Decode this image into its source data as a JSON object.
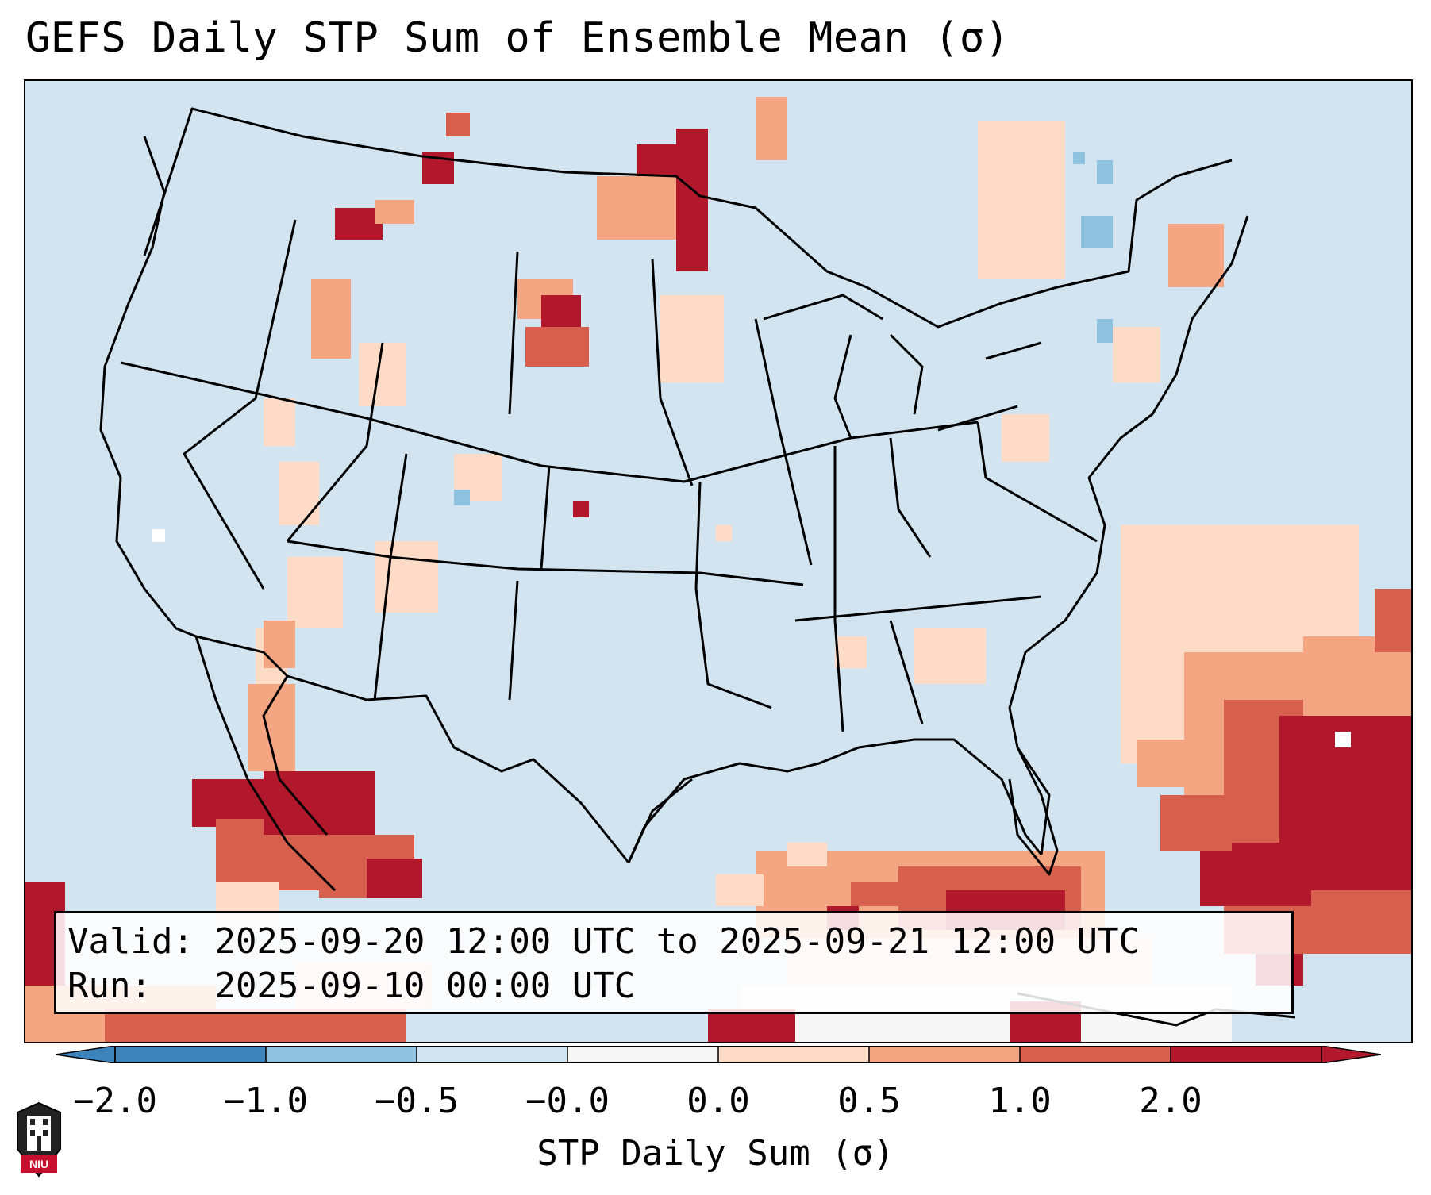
{
  "figure": {
    "title": "GEFS Daily STP Sum of Ensemble Mean (σ)",
    "info": {
      "valid_label": "Valid:",
      "valid_value": "2025-09-20 12:00 UTC to 2025-09-21 12:00 UTC",
      "run_label": "Run:",
      "run_value": "2025-09-10 00:00 UTC"
    },
    "colorbar": {
      "label": "STP Daily Sum (σ)",
      "ticks": [
        "−2.0",
        "−1.0",
        "−0.5",
        "−0.0",
        "0.0",
        "0.5",
        "1.0",
        "2.0"
      ],
      "colors": [
        "#3d84bd",
        "#8fc2de",
        "#d1e4f0",
        "#f7f7f7",
        "#fddbc7",
        "#f4a582",
        "#d6604d",
        "#b2182b"
      ],
      "extend": "both"
    },
    "map": {
      "projection": "Lambert Conformal",
      "region": "CONUS",
      "ocean_color": "#d1e4f0",
      "notable_anomalies": [
        "Gulf of Mexico and western Atlantic strongly positive (red)",
        "Gulf of California and Baja positive",
        "Northern Plains (Dakotas, Montana) positive patches",
        "Great Lakes / Northeast mostly neutral with scattered positives"
      ]
    },
    "logo_text": "NIU"
  }
}
